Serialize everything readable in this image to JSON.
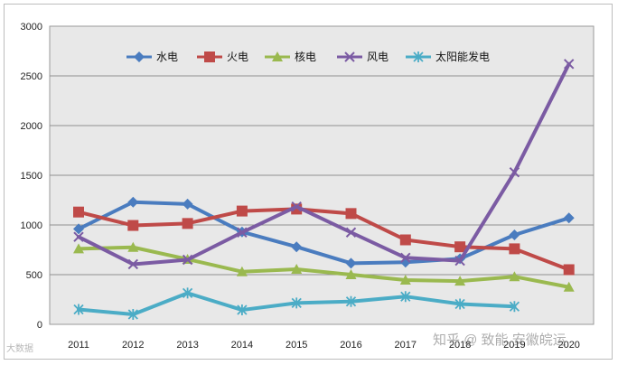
{
  "chart_data": {
    "type": "line",
    "title": "",
    "xlabel": "",
    "ylabel": "",
    "categories": [
      "2011",
      "2012",
      "2013",
      "2014",
      "2015",
      "2016",
      "2017",
      "2018",
      "2019",
      "2020"
    ],
    "ylim": [
      0,
      3000
    ],
    "yticks": [
      0,
      500,
      1000,
      1500,
      2000,
      2500,
      3000
    ],
    "grid": true,
    "legend_position": "top",
    "series": [
      {
        "name": "水电",
        "color": "#4a7cbf",
        "marker": "diamond",
        "values": [
          960,
          1230,
          1210,
          930,
          780,
          615,
          625,
          660,
          900,
          1070
        ]
      },
      {
        "name": "火电",
        "color": "#bf4a48",
        "marker": "square",
        "values": [
          1130,
          995,
          1015,
          1140,
          1160,
          1115,
          850,
          780,
          760,
          550
        ]
      },
      {
        "name": "核电",
        "color": "#9ab94f",
        "marker": "triangle",
        "values": [
          760,
          775,
          655,
          530,
          555,
          500,
          445,
          435,
          480,
          375
        ]
      },
      {
        "name": "风电",
        "color": "#7b5ba3",
        "marker": "x",
        "values": [
          880,
          605,
          650,
          925,
          1185,
          925,
          670,
          640,
          1530,
          2620
        ]
      },
      {
        "name": "太阳能发电",
        "color": "#4bacc6",
        "marker": "asterisk",
        "values": [
          150,
          100,
          315,
          145,
          215,
          230,
          280,
          205,
          180,
          null
        ]
      }
    ]
  },
  "watermarks": {
    "left": "大数据",
    "right": "知乎 @ 致能 安徽皖运"
  }
}
